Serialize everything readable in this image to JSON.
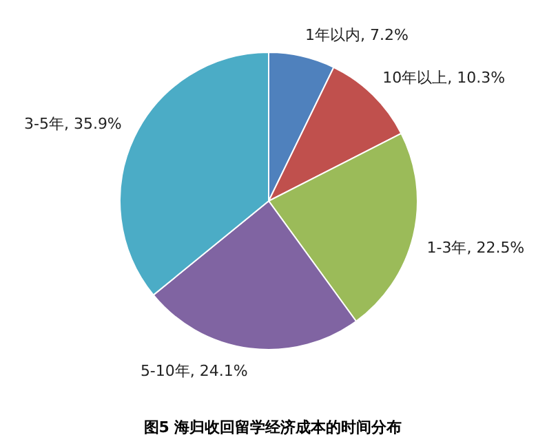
{
  "chart_data": {
    "type": "pie",
    "title": "图5 海归收回留学经济成本的时间分布",
    "categories": [
      "1年以内",
      "10年以上",
      "1-3年",
      "5-10年",
      "3-5年"
    ],
    "values": [
      7.2,
      10.3,
      22.5,
      24.1,
      35.9
    ],
    "value_labels": [
      "7.2%",
      "10.3%",
      "22.5%",
      "24.1%",
      "35.9%"
    ],
    "colors": [
      "#4f81bd",
      "#c0504d",
      "#9bbb59",
      "#8064a2",
      "#4bacc6"
    ],
    "legend": false
  }
}
